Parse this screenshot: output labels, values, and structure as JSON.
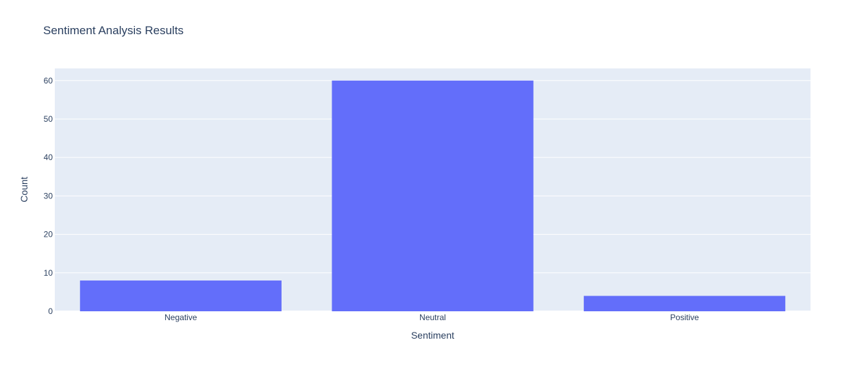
{
  "chart_data": {
    "type": "bar",
    "title": "Sentiment Analysis Results",
    "xlabel": "Sentiment",
    "ylabel": "Count",
    "categories": [
      "Negative",
      "Neutral",
      "Positive"
    ],
    "values": [
      8,
      60,
      4
    ],
    "ylim": [
      0,
      63.16
    ],
    "yticks": [
      0,
      10,
      20,
      30,
      40,
      50,
      60
    ],
    "grid": true,
    "legend": "none",
    "colors": {
      "bar": "#636efa",
      "plot_background": "#e5ecf6",
      "gridline": "#ffffff",
      "text": "#2a3f5f"
    }
  }
}
